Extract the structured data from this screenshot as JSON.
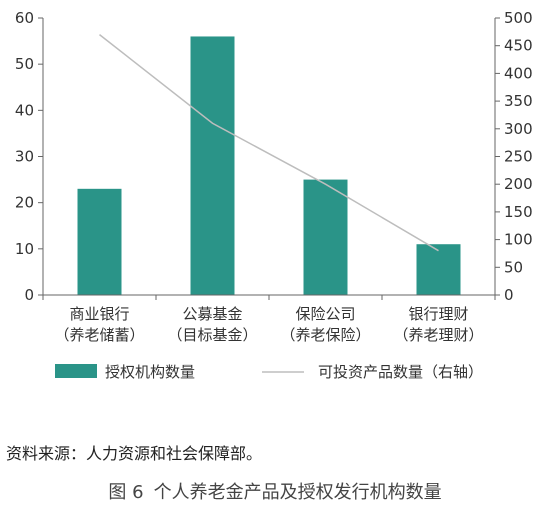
{
  "chart_data": {
    "type": "bar",
    "categories": [
      [
        "商业银行",
        "（养老储蓄）"
      ],
      [
        "公募基金",
        "（目标基金）"
      ],
      [
        "保险公司",
        "（养老保险）"
      ],
      [
        "银行理财",
        "（养老理财）"
      ]
    ],
    "series": [
      {
        "name": "授权机构数量",
        "type": "bar",
        "axis": "left",
        "values": [
          23,
          56,
          25,
          11
        ],
        "color": "#2a9488"
      },
      {
        "name": "可投资产品数量（右轴）",
        "type": "line",
        "axis": "right",
        "values": [
          470,
          310,
          200,
          80
        ],
        "color": "#bdbdbd"
      }
    ],
    "y_left": {
      "ticks": [
        "0",
        "10",
        "20",
        "30",
        "40",
        "50",
        "60"
      ],
      "lim": [
        0,
        60
      ]
    },
    "y_right": {
      "ticks": [
        "0",
        "50",
        "100",
        "150",
        "200",
        "250",
        "300",
        "350",
        "400",
        "450",
        "500"
      ],
      "lim": [
        0,
        500
      ]
    },
    "grid": false,
    "legend_position": "bottom"
  },
  "source": "资料来源：人力资源和社会保障部。",
  "caption": {
    "number": "图 6",
    "text": "个人养老金产品及授权发行机构数量"
  }
}
